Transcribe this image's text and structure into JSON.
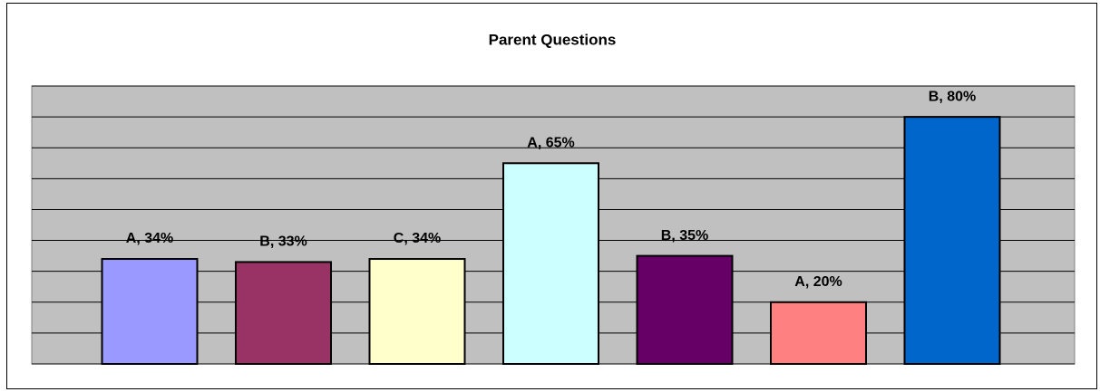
{
  "chart_data": {
    "type": "bar",
    "title": "Parent Questions",
    "values": [
      34,
      33,
      34,
      65,
      35,
      20,
      80
    ],
    "value_labels": [
      "A, 34%",
      "B, 33%",
      "C, 34%",
      "A, 65%",
      "B, 35%",
      "A, 20%",
      "B, 80%"
    ],
    "colors": [
      "#9999ff",
      "#993366",
      "#ffffcc",
      "#ccffff",
      "#660066",
      "#ff8080",
      "#0066cc"
    ],
    "ylim": [
      0,
      90
    ],
    "yticks": [
      0,
      10,
      20,
      30,
      40,
      50,
      60,
      70,
      80,
      90
    ],
    "grid": true
  }
}
